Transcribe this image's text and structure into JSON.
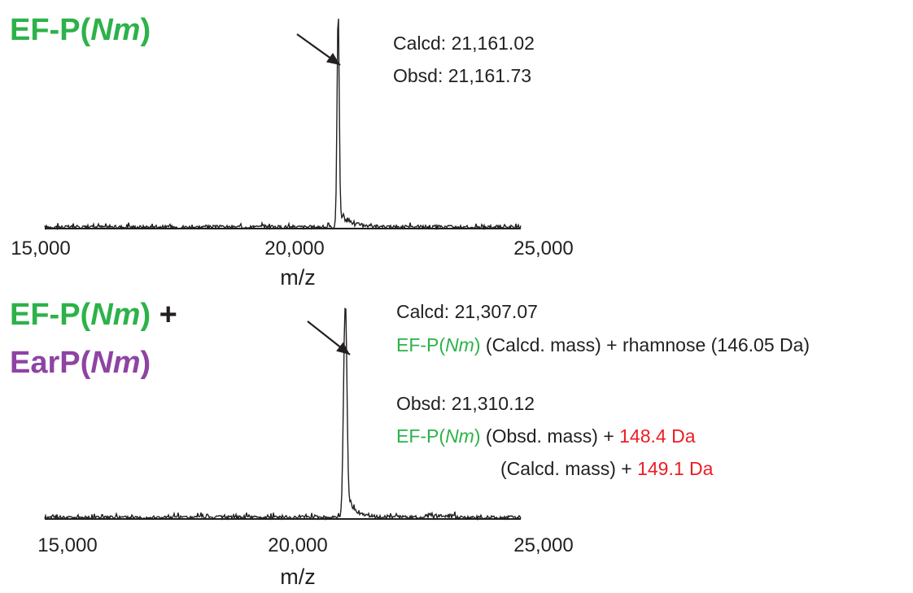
{
  "colors": {
    "green": "#2db24a",
    "purple": "#8e44a3",
    "red": "#ec1c24",
    "trace": "#231f20"
  },
  "panel1": {
    "label_prefix": "EF-P(",
    "label_italic": "Nm",
    "label_suffix": ")",
    "calcd": "Calcd: 21,161.02",
    "obsd": "Obsd: 21,161.73"
  },
  "panel2": {
    "label1_prefix": "EF-P(",
    "label1_italic": "Nm",
    "label1_suffix": ")",
    "label1_plus": " +",
    "label2_prefix": "EarP(",
    "label2_italic": "Nm",
    "label2_suffix": ")",
    "calcd": "Calcd: 21,307.07",
    "calc_line_prefix": "EF-P(",
    "calc_line_italic": "Nm",
    "calc_line_suffix": ")",
    "calc_line_rest": " (Calcd. mass) + rhamnose (146.05 Da)",
    "obsd": "Obsd: 21,310.12",
    "obs_line1_prefix": "EF-P(",
    "obs_line1_italic": "Nm",
    "obs_line1_suffix": ")",
    "obs_line1_rest": " (Obsd. mass) + ",
    "obs_line1_red": "148.4 Da",
    "obs_line2_rest": "(Calcd. mass) + ",
    "obs_line2_red": "149.1 Da"
  },
  "chart_data": [
    {
      "type": "line",
      "xlabel": "m/z",
      "xlim": [
        15000,
        25000
      ],
      "xticks": [
        "15,000",
        "20,000",
        "25,000"
      ],
      "peak_x": 21161.73,
      "peak_y": 1.0,
      "annotations": [
        "Calcd: 21,161.02",
        "Obsd: 21,161.73"
      ]
    },
    {
      "type": "line",
      "xlabel": "m/z",
      "xlim": [
        15000,
        25000
      ],
      "xticks": [
        "15,000",
        "20,000",
        "25,000"
      ],
      "peak_x": 21310.12,
      "peak_y": 0.98,
      "annotations": [
        "Calcd: 21,307.07",
        "Obsd: 21,310.12"
      ]
    }
  ]
}
